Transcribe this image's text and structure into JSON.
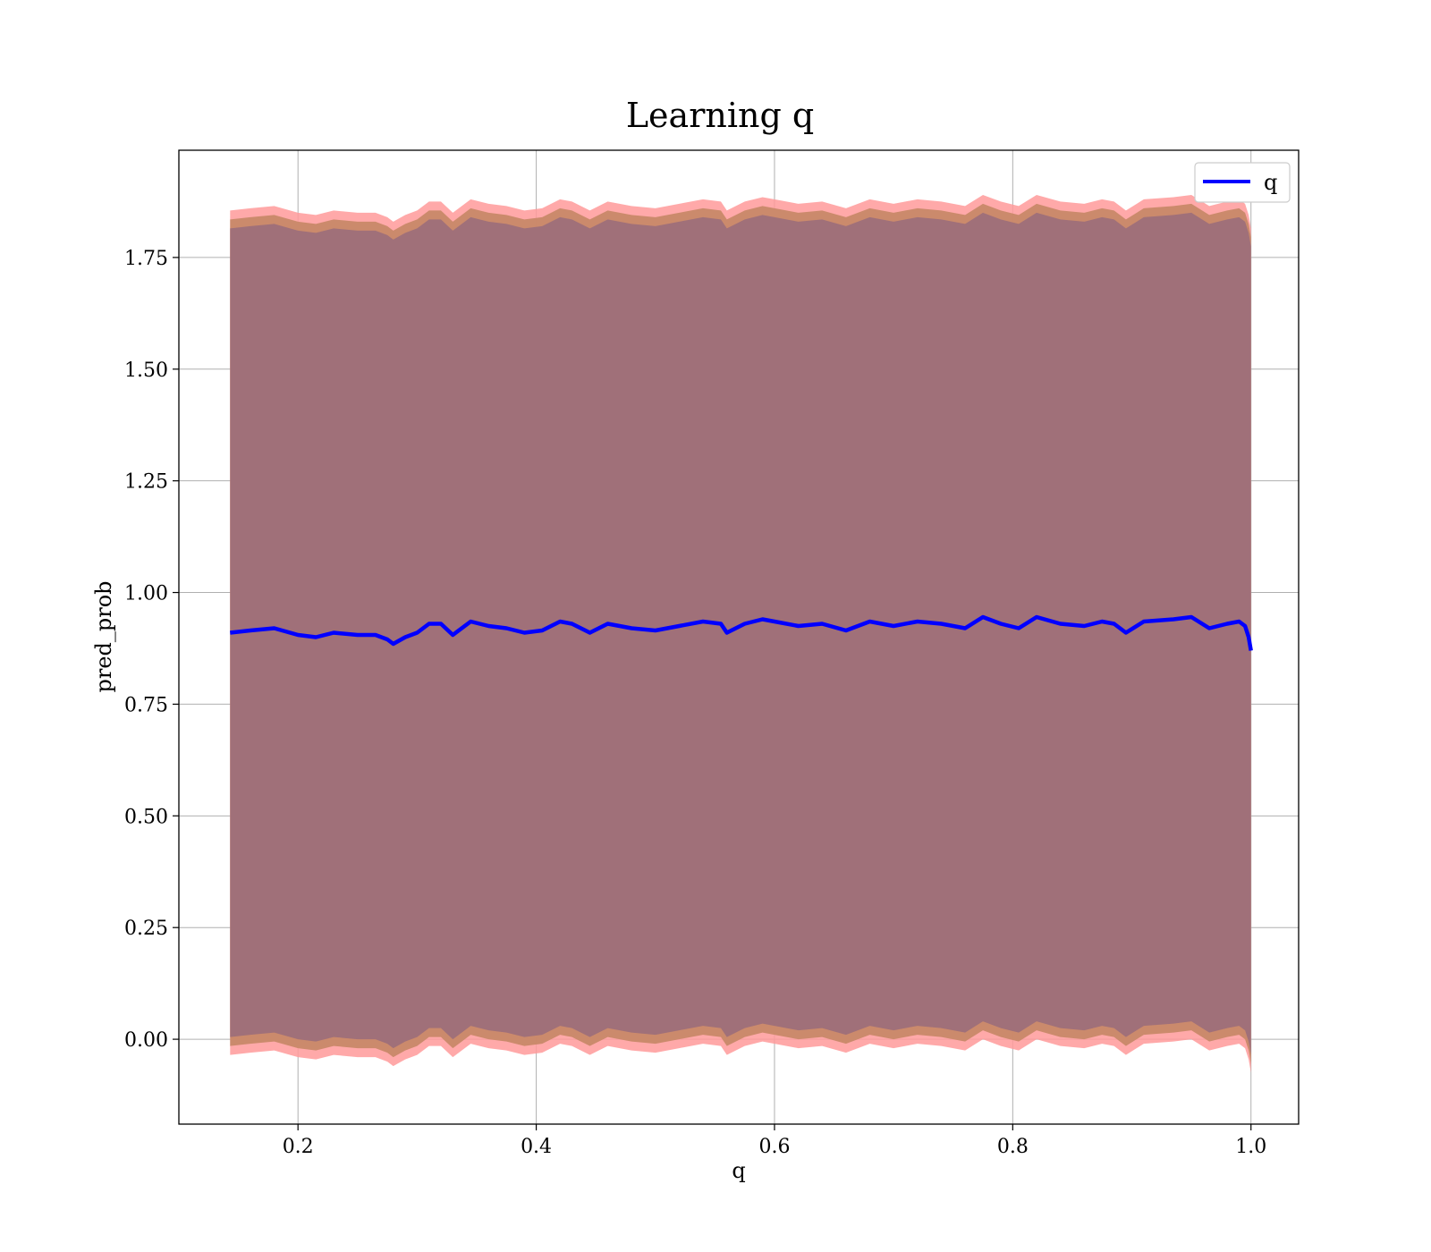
{
  "chart_data": {
    "type": "line",
    "title": "Learning q",
    "xlabel": "q",
    "ylabel": "pred_prob",
    "xlim": [
      0.1,
      1.04
    ],
    "ylim": [
      -0.19,
      1.99
    ],
    "xticks": [
      "0.2",
      "0.4",
      "0.6",
      "0.8",
      "1.0"
    ],
    "xtick_values": [
      0.2,
      0.4,
      0.6,
      0.8,
      1.0
    ],
    "yticks": [
      "0.00",
      "0.25",
      "0.50",
      "0.75",
      "1.00",
      "1.25",
      "1.50",
      "1.75"
    ],
    "ytick_values": [
      0,
      0.25,
      0.5,
      0.75,
      1.0,
      1.25,
      1.5,
      1.75
    ],
    "grid": true,
    "legend": {
      "position": "top-right",
      "entries": [
        "q"
      ]
    },
    "colors": {
      "line": "#0000ff",
      "outer_band": "#ff9a9a",
      "middle_band": "#c88868",
      "inner_band": "#a07079",
      "grid": "#b0b0b0"
    },
    "series": [
      {
        "name": "q",
        "x": [
          0.143,
          0.16,
          0.18,
          0.2,
          0.215,
          0.23,
          0.25,
          0.265,
          0.275,
          0.28,
          0.29,
          0.3,
          0.31,
          0.32,
          0.33,
          0.345,
          0.36,
          0.375,
          0.39,
          0.405,
          0.42,
          0.43,
          0.445,
          0.46,
          0.48,
          0.5,
          0.52,
          0.54,
          0.555,
          0.56,
          0.575,
          0.59,
          0.6,
          0.62,
          0.64,
          0.66,
          0.68,
          0.7,
          0.72,
          0.74,
          0.76,
          0.775,
          0.79,
          0.805,
          0.82,
          0.84,
          0.86,
          0.875,
          0.885,
          0.895,
          0.91,
          0.935,
          0.95,
          0.965,
          0.98,
          0.99,
          0.995,
          0.998,
          1.0
        ],
        "y": [
          0.91,
          0.915,
          0.92,
          0.905,
          0.9,
          0.91,
          0.905,
          0.905,
          0.895,
          0.885,
          0.9,
          0.91,
          0.93,
          0.93,
          0.905,
          0.935,
          0.925,
          0.92,
          0.91,
          0.915,
          0.935,
          0.93,
          0.91,
          0.93,
          0.92,
          0.915,
          0.925,
          0.935,
          0.93,
          0.91,
          0.93,
          0.94,
          0.935,
          0.925,
          0.93,
          0.915,
          0.935,
          0.925,
          0.935,
          0.93,
          0.92,
          0.945,
          0.93,
          0.92,
          0.945,
          0.93,
          0.925,
          0.935,
          0.93,
          0.91,
          0.935,
          0.94,
          0.945,
          0.92,
          0.93,
          0.935,
          0.925,
          0.9,
          0.87
        ],
        "ci_inner": [
          0.91,
          0.915,
          0.92,
          0.905,
          0.9,
          0.91,
          0.905,
          0.905,
          0.895,
          0.885,
          0.9,
          0.91,
          0.93,
          0.93,
          0.905,
          0.935,
          0.925,
          0.92,
          0.91,
          0.915,
          0.935,
          0.93,
          0.91,
          0.93,
          0.92,
          0.915,
          0.925,
          0.935,
          0.93,
          0.91,
          0.93,
          0.94,
          0.935,
          0.925,
          0.93,
          0.915,
          0.935,
          0.925,
          0.935,
          0.93,
          0.92,
          0.945,
          0.93,
          0.92,
          0.945,
          0.93,
          0.925,
          0.935,
          0.93,
          0.91,
          0.935,
          0.94,
          0.945,
          0.92,
          0.93,
          0.935,
          0.925,
          0.9,
          0.87
        ],
        "ci_inner_halfwidth": 0.905,
        "ci_middle_halfwidth": 0.925,
        "ci_outer_halfwidth": 0.945
      }
    ]
  }
}
